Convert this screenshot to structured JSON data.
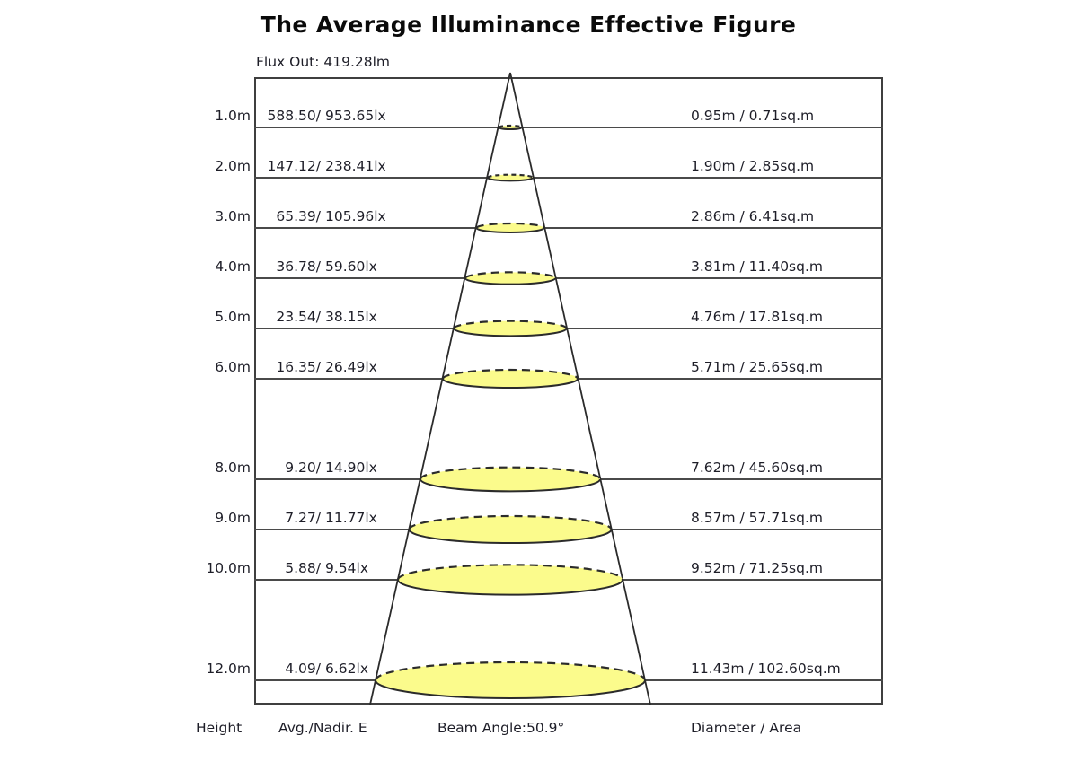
{
  "title": "The Average Illuminance Effective Figure",
  "flux_label": "Flux Out: 419.28lm",
  "footer": {
    "height": "Height",
    "avg": "Avg./Nadir. E",
    "beam_angle": "Beam Angle:50.9°",
    "diameter": "Diameter / Area"
  },
  "rows": [
    {
      "height": "1.0m",
      "avg": "588.50/",
      "nadir": "953.65lx",
      "diameter": "0.95m / 0.71sq.m"
    },
    {
      "height": "2.0m",
      "avg": "147.12/",
      "nadir": "238.41lx",
      "diameter": "1.90m / 2.85sq.m"
    },
    {
      "height": "3.0m",
      "avg": "65.39/",
      "nadir": "105.96lx",
      "diameter": "2.86m / 6.41sq.m"
    },
    {
      "height": "4.0m",
      "avg": "36.78/",
      "nadir": "59.60lx",
      "diameter": "3.81m / 11.40sq.m"
    },
    {
      "height": "5.0m",
      "avg": "23.54/",
      "nadir": "38.15lx",
      "diameter": "4.76m / 17.81sq.m"
    },
    {
      "height": "6.0m",
      "avg": "16.35/",
      "nadir": "26.49lx",
      "diameter": "5.71m / 25.65sq.m"
    },
    {
      "height": "8.0m",
      "avg": "9.20/",
      "nadir": "14.90lx",
      "diameter": "7.62m / 45.60sq.m"
    },
    {
      "height": "9.0m",
      "avg": "7.27/",
      "nadir": "11.77lx",
      "diameter": "8.57m / 57.71sq.m"
    },
    {
      "height": "10.0m",
      "avg": "5.88/",
      "nadir": "9.54lx",
      "diameter": "9.52m / 71.25sq.m"
    },
    {
      "height": "12.0m",
      "avg": "4.09/",
      "nadir": "6.62lx",
      "diameter": "11.43m / 102.60sq.m"
    }
  ],
  "colors": {
    "beam_fill": "#FBFB8C",
    "beam_stroke": "#2b2b2b",
    "grid_line": "#4a4a4a",
    "text": "#1e1e28"
  },
  "chart_data": {
    "type": "table",
    "title": "The Average Illuminance Effective Figure",
    "flux_out_lm": 419.28,
    "beam_angle_deg": 50.9,
    "columns": [
      "Height (m)",
      "Avg E (lx)",
      "Nadir E (lx)",
      "Diameter (m)",
      "Area (sq.m)"
    ],
    "rows": [
      {
        "height_m": 1.0,
        "avg_lx": 588.5,
        "nadir_lx": 953.65,
        "diameter_m": 0.95,
        "area_sqm": 0.71
      },
      {
        "height_m": 2.0,
        "avg_lx": 147.12,
        "nadir_lx": 238.41,
        "diameter_m": 1.9,
        "area_sqm": 2.85
      },
      {
        "height_m": 3.0,
        "avg_lx": 65.39,
        "nadir_lx": 105.96,
        "diameter_m": 2.86,
        "area_sqm": 6.41
      },
      {
        "height_m": 4.0,
        "avg_lx": 36.78,
        "nadir_lx": 59.6,
        "diameter_m": 3.81,
        "area_sqm": 11.4
      },
      {
        "height_m": 5.0,
        "avg_lx": 23.54,
        "nadir_lx": 38.15,
        "diameter_m": 4.76,
        "area_sqm": 17.81
      },
      {
        "height_m": 6.0,
        "avg_lx": 16.35,
        "nadir_lx": 26.49,
        "diameter_m": 5.71,
        "area_sqm": 25.65
      },
      {
        "height_m": 8.0,
        "avg_lx": 9.2,
        "nadir_lx": 14.9,
        "diameter_m": 7.62,
        "area_sqm": 45.6
      },
      {
        "height_m": 9.0,
        "avg_lx": 7.27,
        "nadir_lx": 11.77,
        "diameter_m": 8.57,
        "area_sqm": 57.71
      },
      {
        "height_m": 10.0,
        "avg_lx": 5.88,
        "nadir_lx": 9.54,
        "diameter_m": 9.52,
        "area_sqm": 71.25
      },
      {
        "height_m": 12.0,
        "avg_lx": 4.09,
        "nadir_lx": 6.62,
        "diameter_m": 11.43,
        "area_sqm": 102.6
      }
    ],
    "layout_hints": {
      "skipped_heights": [
        7,
        11
      ],
      "orientation": "light cone with apex at top center, yellow beam ellipses drawn at each height line",
      "grid": "horizontal line per listed height spanning full plot width"
    }
  }
}
